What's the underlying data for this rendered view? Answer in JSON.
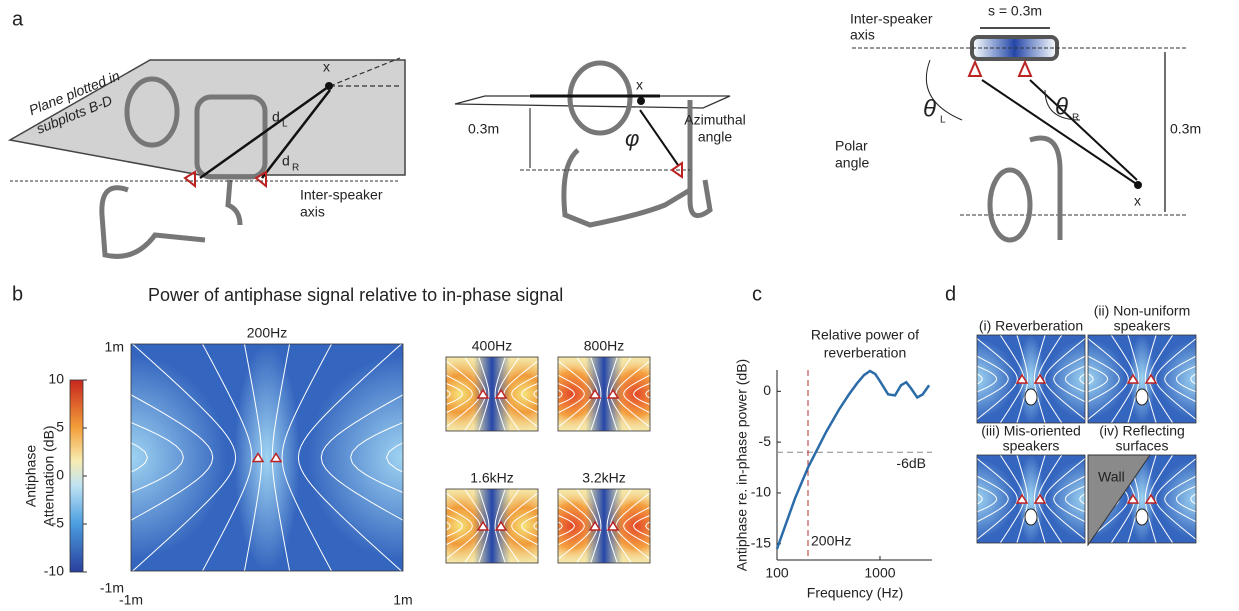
{
  "panels": [
    "a",
    "b",
    "c",
    "d"
  ],
  "panel_a": {
    "left": {
      "plane_label": [
        "Plane plotted in",
        "subplots B-D"
      ],
      "point": "x",
      "d_left": "d",
      "d_left_sub": "L",
      "d_right": "d",
      "d_right_sub": "R",
      "axis_label": [
        "Inter-speaker",
        "axis"
      ]
    },
    "middle": {
      "point": "x",
      "height": "0.3m",
      "angle_symbol": "φ",
      "angle_label": [
        "Azimuthal",
        "angle"
      ]
    },
    "right": {
      "spacing": "s = 0.3m",
      "axis_label": [
        "Inter-speaker",
        "axis"
      ],
      "theta_left": "θ",
      "theta_left_sub": "L",
      "theta_right": "θ",
      "theta_right_sub": "R",
      "angle_label": [
        "Polar",
        "angle"
      ],
      "distance": "0.3m",
      "point": "x"
    }
  },
  "panel_b": {
    "title": "Power of antiphase signal relative to in-phase signal",
    "main_plot": {
      "title": "200Hz",
      "x_labels": [
        "-1m",
        "1m"
      ],
      "y_labels": [
        "1m",
        "-1m"
      ]
    },
    "colorbar": {
      "label": [
        "Antiphase",
        "Attenuation (dB)"
      ],
      "ticks": [
        10,
        5,
        0,
        -5,
        -10
      ],
      "lim": [
        -10,
        10
      ]
    },
    "small_plots": [
      "400Hz",
      "800Hz",
      "1.6kHz",
      "3.2kHz"
    ]
  },
  "panel_d": {
    "plots": [
      [
        "(i) Reverberation"
      ],
      [
        "(ii) Non-uniform",
        "speakers"
      ],
      [
        "(iii) Mis-oriented",
        "speakers"
      ],
      [
        "(iv) Reflecting",
        "surfaces"
      ]
    ],
    "wall_label": "Wall"
  },
  "chart_data": {
    "type": "line",
    "title": [
      "Relative power of",
      "reverberation"
    ],
    "x_label": "Frequency (Hz)",
    "y_label": "Antiphase re. in-phase power (dB)",
    "log_x": true,
    "x": [
      100,
      150,
      200,
      300,
      400,
      500,
      600,
      700,
      800,
      900,
      1000,
      1200,
      1400,
      1600,
      1800,
      2000,
      2300,
      2600,
      3000
    ],
    "series": [
      {
        "color": "#2b6ca8",
        "values": [
          -15.5,
          -10.5,
          -7.5,
          -4,
          -1.8,
          -0.3,
          0.8,
          1.6,
          2,
          1.7,
          1,
          -0.3,
          -0.4,
          0.6,
          0.9,
          0.3,
          -0.6,
          -0.3,
          0.6
        ]
      }
    ],
    "xlim": [
      100,
      3200
    ],
    "xticks": [
      100,
      1000
    ],
    "ylim": [
      -16.6,
      2.1
    ],
    "yticks": [
      -15,
      -10,
      -5,
      0
    ],
    "annotations": [
      {
        "text": "-6dB",
        "axis": "y",
        "value": -6,
        "color": "#888888"
      },
      {
        "text": "200Hz",
        "axis": "x",
        "value": 200,
        "color": "#b03030"
      }
    ]
  }
}
